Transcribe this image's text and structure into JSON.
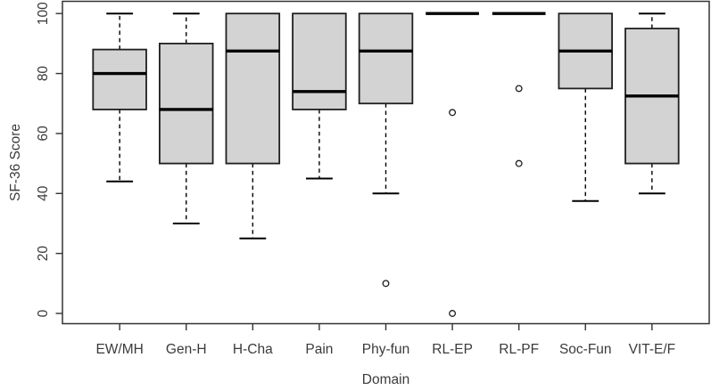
{
  "figure": {
    "background": "#ffffff"
  },
  "chart_data": {
    "type": "boxplot",
    "title": "",
    "xlabel": "Domain",
    "ylabel": "SF-36 Score",
    "ylim": [
      0,
      100
    ],
    "yticks": [
      0,
      20,
      40,
      60,
      80,
      100
    ],
    "grid": false,
    "legend": false,
    "categories": [
      "EW/MH",
      "Gen-H",
      "H-Cha",
      "Pain",
      "Phy-fun",
      "RL-EP",
      "RL-PF",
      "Soc-Fun",
      "VIT-E/F"
    ],
    "series": [
      {
        "name": "EW/MH",
        "whisker_low": 44,
        "q1": 68,
        "median": 80,
        "q3": 88,
        "whisker_high": 100,
        "outliers": []
      },
      {
        "name": "Gen-H",
        "whisker_low": 30,
        "q1": 50,
        "median": 68,
        "q3": 90,
        "whisker_high": 100,
        "outliers": []
      },
      {
        "name": "H-Cha",
        "whisker_low": 25,
        "q1": 50,
        "median": 87.5,
        "q3": 100,
        "whisker_high": 100,
        "outliers": []
      },
      {
        "name": "Pain",
        "whisker_low": 45,
        "q1": 68,
        "median": 74,
        "q3": 100,
        "whisker_high": 100,
        "outliers": []
      },
      {
        "name": "Phy-fun",
        "whisker_low": 40,
        "q1": 70,
        "median": 87.5,
        "q3": 100,
        "whisker_high": 100,
        "outliers": [
          10
        ]
      },
      {
        "name": "RL-EP",
        "whisker_low": 100,
        "q1": 100,
        "median": 100,
        "q3": 100,
        "whisker_high": 100,
        "outliers": [
          67,
          0
        ]
      },
      {
        "name": "RL-PF",
        "whisker_low": 100,
        "q1": 100,
        "median": 100,
        "q3": 100,
        "whisker_high": 100,
        "outliers": [
          75,
          50
        ]
      },
      {
        "name": "Soc-Fun",
        "whisker_low": 37.5,
        "q1": 75,
        "median": 87.5,
        "q3": 100,
        "whisker_high": 100,
        "outliers": []
      },
      {
        "name": "VIT-E/F",
        "whisker_low": 40,
        "q1": 50,
        "median": 72.5,
        "q3": 95,
        "whisker_high": 100,
        "outliers": []
      }
    ],
    "colors": {
      "box_fill": "#d3d3d3",
      "box_stroke": "#1f1f1f",
      "median": "#000000",
      "axis": "#333333",
      "text": "#3b3b3b",
      "outlier_fill": "#ffffff"
    }
  }
}
